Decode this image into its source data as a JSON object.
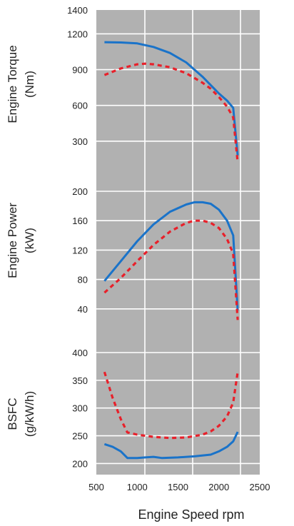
{
  "colors": {
    "background": "#b1b1b1",
    "grid": "#ffffff",
    "solid_series": "#1a73c9",
    "dashed_series": "#e8202a"
  },
  "chart_data": [
    {
      "type": "line",
      "ylabel_lines": [
        "Engine Torque",
        "(Nm)"
      ],
      "ylim": [
        0,
        1400
      ],
      "yticks": [
        300,
        600,
        900,
        1200,
        1400
      ],
      "xlim": [
        500,
        2500
      ],
      "grid": true,
      "series": [
        {
          "style": "solid",
          "color": "#1a73c9",
          "x": [
            600,
            800,
            1000,
            1200,
            1400,
            1600,
            1800,
            1900,
            2000,
            2100,
            2175,
            2230
          ],
          "y": [
            1130,
            1128,
            1120,
            1090,
            1040,
            960,
            840,
            770,
            700,
            640,
            580,
            180
          ]
        },
        {
          "style": "dashed",
          "color": "#e8202a",
          "x": [
            600,
            800,
            1000,
            1100,
            1200,
            1400,
            1600,
            1800,
            1900,
            2000,
            2100,
            2175,
            2230
          ],
          "y": [
            855,
            910,
            945,
            950,
            945,
            920,
            870,
            790,
            740,
            670,
            590,
            500,
            120
          ]
        }
      ]
    },
    {
      "type": "line",
      "ylabel_lines": [
        "Engine Power",
        "(kW)"
      ],
      "ylim": [
        0,
        200
      ],
      "yticks": [
        40,
        80,
        120,
        160,
        200
      ],
      "xlim": [
        500,
        2500
      ],
      "grid": true,
      "series": [
        {
          "style": "solid",
          "color": "#1a73c9",
          "x": [
            600,
            800,
            1000,
            1200,
            1400,
            1600,
            1700,
            1800,
            1900,
            2000,
            2100,
            2175,
            2230
          ],
          "y": [
            78,
            105,
            132,
            155,
            172,
            182,
            185,
            185,
            183,
            175,
            160,
            140,
            38
          ]
        },
        {
          "style": "dashed",
          "color": "#e8202a",
          "x": [
            600,
            800,
            1000,
            1200,
            1400,
            1600,
            1700,
            1800,
            1900,
            2000,
            2100,
            2175,
            2230
          ],
          "y": [
            62,
            82,
            105,
            127,
            145,
            157,
            160,
            160,
            157,
            150,
            135,
            115,
            25
          ]
        }
      ]
    },
    {
      "type": "line",
      "ylabel_lines": [
        "BSFC",
        "(g/kW/h)"
      ],
      "ylim": [
        180,
        400
      ],
      "yticks": [
        200,
        250,
        300,
        350,
        400
      ],
      "xlim": [
        500,
        2500
      ],
      "xticks": [
        500,
        1000,
        1500,
        2000,
        2500
      ],
      "xlabel": "Engine Speed rpm",
      "grid": true,
      "series": [
        {
          "style": "solid",
          "color": "#1a73c9",
          "x": [
            600,
            700,
            800,
            880,
            1000,
            1100,
            1200,
            1300,
            1500,
            1700,
            1900,
            2000,
            2100,
            2175,
            2230
          ],
          "y": [
            235,
            230,
            222,
            210,
            210,
            211,
            212,
            210,
            211,
            213,
            216,
            222,
            230,
            240,
            257
          ]
        },
        {
          "style": "dashed",
          "color": "#e8202a",
          "x": [
            600,
            700,
            800,
            880,
            1000,
            1200,
            1400,
            1600,
            1800,
            1900,
            2000,
            2100,
            2175,
            2230
          ],
          "y": [
            365,
            318,
            280,
            256,
            252,
            248,
            246,
            247,
            252,
            258,
            268,
            285,
            310,
            365
          ]
        }
      ]
    }
  ]
}
